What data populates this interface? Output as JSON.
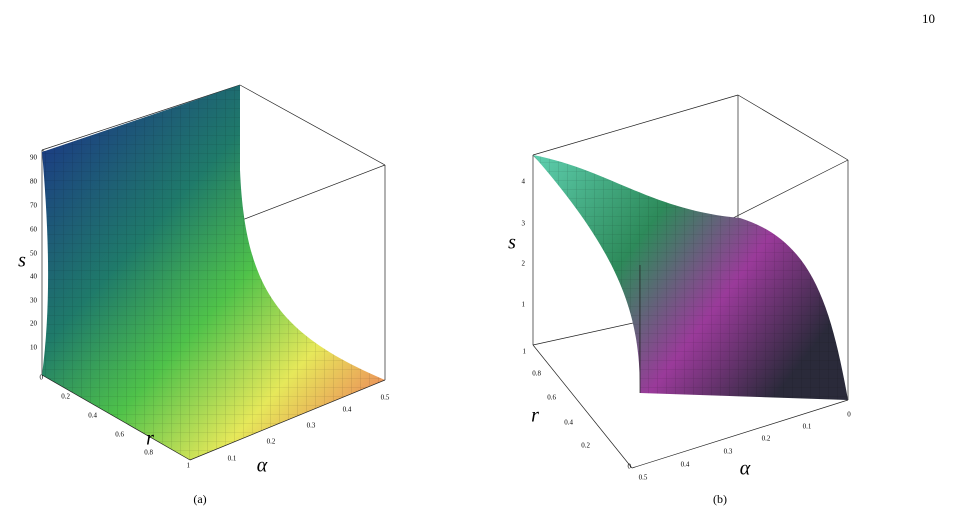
{
  "page_number": "10",
  "figures": [
    {
      "caption": "(a)",
      "z_label": "s",
      "r_label": "r",
      "alpha_label": "α",
      "z_ticks": [
        "90",
        "80",
        "70",
        "60",
        "50",
        "40",
        "30",
        "20",
        "10"
      ],
      "r_ticks": [
        "0",
        "0.2",
        "0.4",
        "0.6",
        "0.8",
        "1"
      ],
      "alpha_ticks": [
        "0.1",
        "0.2",
        "0.3",
        "0.4",
        "0.5"
      ]
    },
    {
      "caption": "(b)",
      "z_label": "s",
      "r_label": "r",
      "alpha_label": "α",
      "z_ticks": [
        "4",
        "3",
        "2",
        "1"
      ],
      "r_ticks": [
        "1",
        "0.8",
        "0.6",
        "0.4",
        "0.2",
        "0"
      ],
      "alpha_ticks": [
        "0.5",
        "0.4",
        "0.3",
        "0.2",
        "0.1",
        "0"
      ]
    }
  ]
}
